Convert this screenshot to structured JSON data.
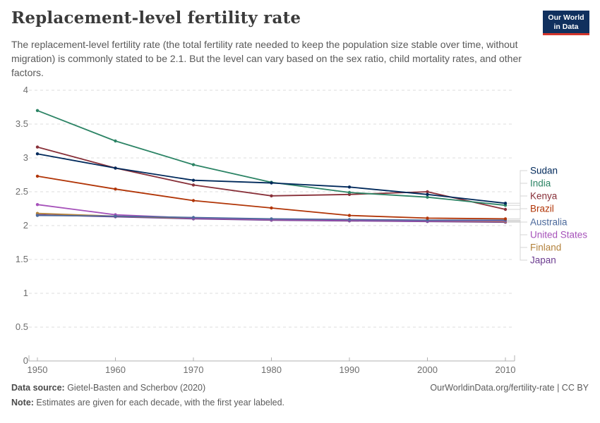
{
  "header": {
    "title": "Replacement-level fertility rate",
    "subtitle": "The replacement-level fertility rate (the total fertility rate needed to keep the population size stable over time, without migration) is commonly stated to be 2.1. But the level can vary based on the sex ratio, child mortality rates, and other factors.",
    "logo": {
      "line1": "Our World",
      "line2": "in Data",
      "bg_color": "#10305e",
      "accent_color": "#d3352b",
      "text_color": "#ffffff"
    }
  },
  "chart_data": {
    "type": "line",
    "title": "Replacement-level fertility rate",
    "xlabel": "",
    "ylabel": "",
    "x": [
      1950,
      1960,
      1970,
      1980,
      1990,
      2000,
      2010
    ],
    "x_note": "Estimates per decade, first year labeled",
    "ylim": [
      0,
      4
    ],
    "yticks": [
      0,
      0.5,
      1,
      1.5,
      2,
      2.5,
      3,
      3.5,
      4
    ],
    "grid": "horizontal-dashed",
    "legend_position": "right",
    "grid_color": "#dcdcdc",
    "axis_color": "#b0b0b0",
    "tick_color": "#6e6e6e",
    "connector_color": "#d4d4d4",
    "series": [
      {
        "name": "Sudan",
        "color": "#00295B",
        "values": [
          3.06,
          2.85,
          2.67,
          2.63,
          2.57,
          2.46,
          2.33
        ]
      },
      {
        "name": "India",
        "color": "#2C8465",
        "values": [
          3.7,
          3.25,
          2.9,
          2.64,
          2.49,
          2.42,
          2.3
        ]
      },
      {
        "name": "Kenya",
        "color": "#883039",
        "values": [
          3.16,
          2.85,
          2.6,
          2.44,
          2.46,
          2.5,
          2.24
        ]
      },
      {
        "name": "Brazil",
        "color": "#B13507",
        "values": [
          2.73,
          2.54,
          2.37,
          2.26,
          2.15,
          2.11,
          2.1
        ]
      },
      {
        "name": "Australia",
        "color": "#4C6A9C",
        "values": [
          2.15,
          2.14,
          2.12,
          2.1,
          2.09,
          2.08,
          2.08
        ]
      },
      {
        "name": "United States",
        "color": "#A652BA",
        "values": [
          2.31,
          2.16,
          2.11,
          2.09,
          2.08,
          2.07,
          2.07
        ]
      },
      {
        "name": "Finland",
        "color": "#B3823C",
        "values": [
          2.18,
          2.14,
          2.11,
          2.09,
          2.08,
          2.07,
          2.06
        ]
      },
      {
        "name": "Japan",
        "color": "#6D3E91",
        "values": [
          2.16,
          2.13,
          2.1,
          2.08,
          2.07,
          2.06,
          2.05
        ]
      }
    ]
  },
  "footer": {
    "source_label": "Data source:",
    "source_text": " Gietel-Basten and Scherbov (2020)",
    "note_label": "Note:",
    "note_text": " Estimates are given for each decade, with the first year labeled.",
    "credit": "OurWorldinData.org/fertility-rate | CC BY"
  }
}
